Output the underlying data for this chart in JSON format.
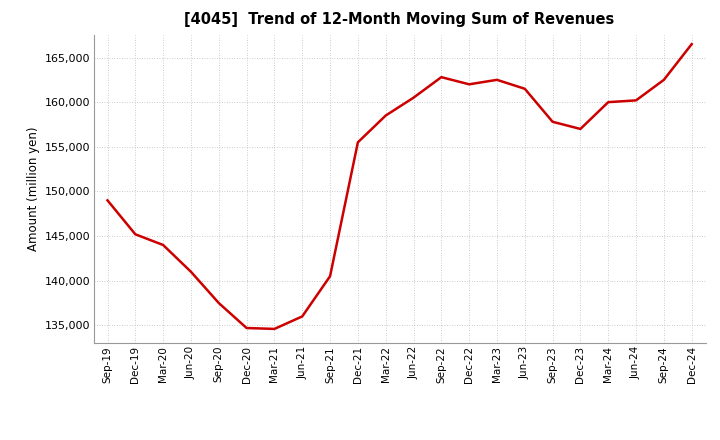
{
  "title": "[4045]  Trend of 12-Month Moving Sum of Revenues",
  "ylabel": "Amount (million yen)",
  "line_color": "#cc0000",
  "line_width": 1.8,
  "background_color": "#ffffff",
  "grid_color": "#bbbbbb",
  "ylim": [
    133000,
    167500
  ],
  "yticks": [
    135000,
    140000,
    145000,
    150000,
    155000,
    160000,
    165000
  ],
  "x_labels": [
    "Sep-19",
    "Dec-19",
    "Mar-20",
    "Jun-20",
    "Sep-20",
    "Dec-20",
    "Mar-21",
    "Jun-21",
    "Sep-21",
    "Dec-21",
    "Mar-22",
    "Jun-22",
    "Sep-22",
    "Dec-22",
    "Mar-23",
    "Jun-23",
    "Sep-23",
    "Dec-23",
    "Mar-24",
    "Jun-24",
    "Sep-24",
    "Dec-24"
  ],
  "values": [
    149000,
    145200,
    144000,
    141000,
    137500,
    134700,
    134600,
    136000,
    140500,
    155500,
    158500,
    160500,
    162800,
    162000,
    162500,
    161500,
    157800,
    157000,
    160000,
    160200,
    162500,
    166500
  ]
}
